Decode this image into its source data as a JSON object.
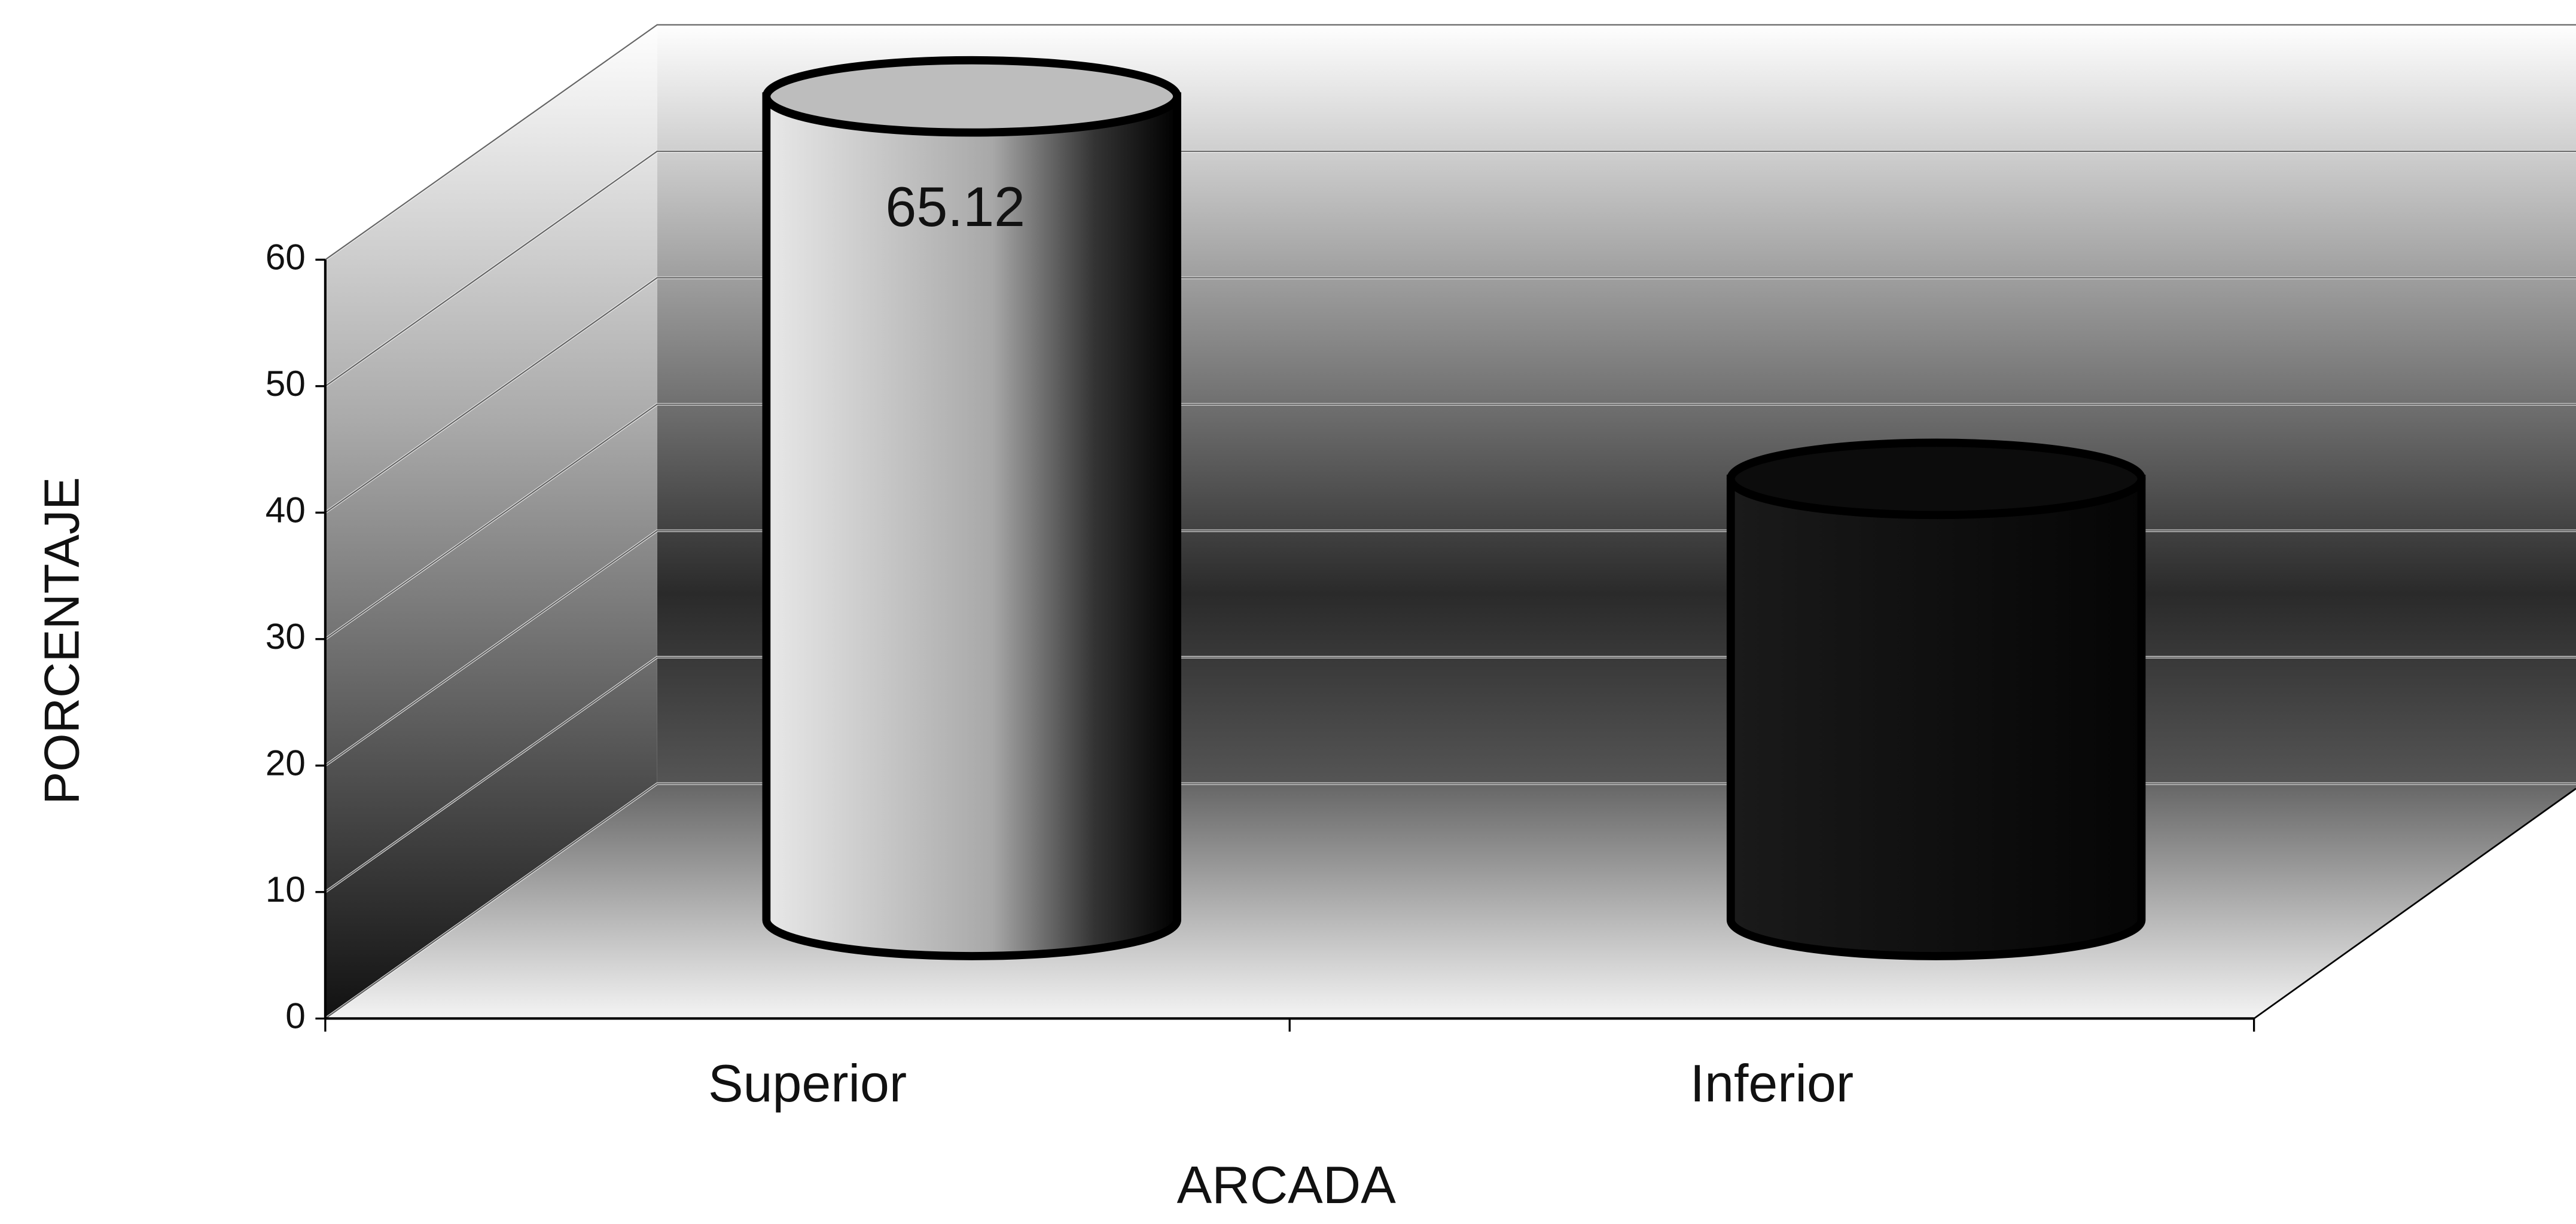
{
  "chart_data": {
    "type": "bar",
    "style": "3d-cylinder",
    "xlabel": "ARCADA",
    "ylabel": "PORCENTAJE",
    "categories": [
      "Superior",
      "Inferior"
    ],
    "series": [
      {
        "name": null,
        "colors": [
          "#c8c8c8",
          "#141414"
        ],
        "values": [
          65.12,
          34.88
        ],
        "value_labels": [
          "65.12",
          null
        ]
      }
    ],
    "ylim": [
      0,
      60
    ],
    "yticks": [
      0,
      10,
      20,
      30,
      40,
      50,
      60
    ],
    "grid": true
  }
}
